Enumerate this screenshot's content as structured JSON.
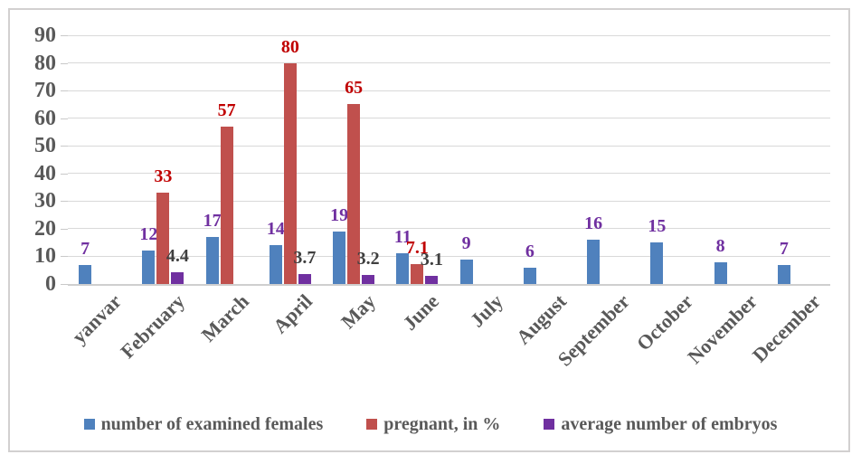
{
  "chart_data": {
    "type": "bar",
    "title": "",
    "categories": [
      "yanvar",
      "February",
      "March",
      "April",
      "May",
      "June",
      "July",
      "August",
      "September",
      "October",
      "November",
      "December"
    ],
    "series": [
      {
        "name": "number of examined females",
        "color": "#4F81BD",
        "label_color": "#7030A0",
        "values": [
          7,
          12,
          17,
          14,
          19,
          11,
          9,
          6,
          16,
          15,
          8,
          7
        ]
      },
      {
        "name": "pregnant, in %",
        "color": "#C0504D",
        "label_color": "#C00000",
        "values": [
          null,
          33,
          57,
          80,
          65,
          7.1,
          null,
          null,
          null,
          null,
          null,
          null
        ]
      },
      {
        "name": "average number of embryos",
        "color": "#7030A0",
        "label_color": "#3F3F3F",
        "values": [
          null,
          4.4,
          null,
          3.7,
          3.2,
          3.1,
          null,
          null,
          null,
          null,
          null,
          null
        ]
      }
    ],
    "ylim": [
      0,
      90
    ],
    "ytick_step": 10,
    "yticks": [
      0,
      10,
      20,
      30,
      40,
      50,
      60,
      70,
      80,
      90
    ],
    "grid": "horizontal",
    "gridline_color": "#D9D9D9",
    "axis_label_color": "#595959",
    "legend_position": "bottom"
  }
}
